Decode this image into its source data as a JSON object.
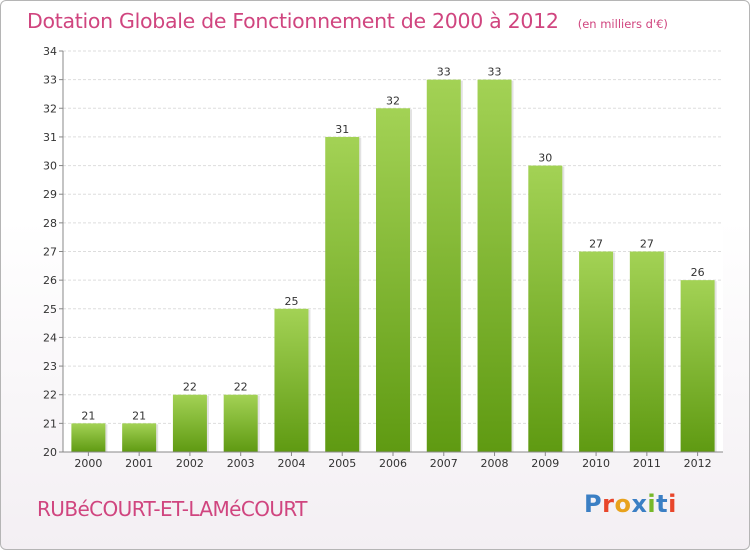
{
  "header": {
    "title": "Dotation Globale de Fonctionnement de 2000 à 2012",
    "unit": "(en milliers d'€)"
  },
  "footer": {
    "commune": "RUBéCOURT-ET-LAMéCOURT",
    "logo_text": "Proxiti",
    "logo_colors": [
      "#3b7fc4",
      "#e8462b",
      "#e8a21c",
      "#3b7fc4",
      "#77b82a",
      "#3b7fc4",
      "#e8462b"
    ]
  },
  "chart_data": {
    "type": "bar",
    "categories": [
      "2000",
      "2001",
      "2002",
      "2003",
      "2004",
      "2005",
      "2006",
      "2007",
      "2008",
      "2009",
      "2010",
      "2011",
      "2012"
    ],
    "values": [
      21,
      21,
      22,
      22,
      25,
      31,
      32,
      33,
      33,
      30,
      27,
      27,
      26
    ],
    "value_labels": [
      "21",
      "21",
      "22",
      "22",
      "25",
      "31",
      "32",
      "33",
      "33",
      "30",
      "27",
      "27",
      "26"
    ],
    "title": "Dotation Globale de Fonctionnement de 2000 à 2012",
    "xlabel": "",
    "ylabel": "",
    "ylim": [
      20,
      34
    ],
    "yticks": [
      "20",
      "21",
      "22",
      "23",
      "24",
      "25",
      "26",
      "27",
      "28",
      "29",
      "30",
      "31",
      "32",
      "33",
      "34"
    ],
    "grid": true,
    "bar_color_top": "#a3d255",
    "bar_color_bottom": "#5f9a12"
  }
}
